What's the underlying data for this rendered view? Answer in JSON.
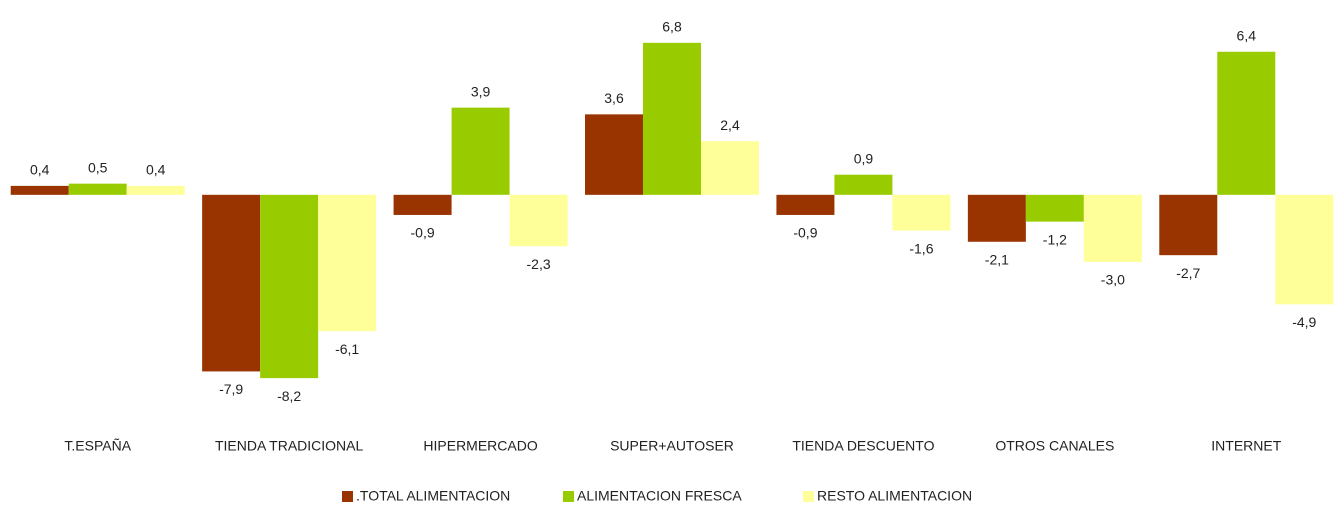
{
  "chart_data": {
    "type": "bar",
    "categories": [
      "T.ESPAÑA",
      "TIENDA TRADICIONAL",
      "HIPERMERCADO",
      "SUPER+AUTOSER",
      "TIENDA DESCUENTO",
      "OTROS CANALES",
      "INTERNET"
    ],
    "series": [
      {
        "name": ".TOTAL ALIMENTACION",
        "color": "#993300",
        "values": [
          0.4,
          -7.9,
          -0.9,
          3.6,
          -0.9,
          -2.1,
          -2.7
        ],
        "value_labels": [
          "0,4",
          "-7,9",
          "-0,9",
          "3,6",
          "-0,9",
          "-2,1",
          "-2,7"
        ]
      },
      {
        "name": "ALIMENTACION FRESCA",
        "color": "#99cc00",
        "values": [
          0.5,
          -8.2,
          3.9,
          6.8,
          0.9,
          -1.2,
          6.4
        ],
        "value_labels": [
          "0,5",
          "-8,2",
          "3,9",
          "6,8",
          "0,9",
          "-1,2",
          "6,4"
        ]
      },
      {
        "name": "RESTO ALIMENTACION",
        "color": "#ffff99",
        "values": [
          0.4,
          -6.1,
          -2.3,
          2.4,
          -1.6,
          -3.0,
          -4.9
        ],
        "value_labels": [
          "0,4",
          "-6,1",
          "-2,3",
          "2,4",
          "-1,6",
          "-3,0",
          "-4,9"
        ]
      }
    ],
    "ylim": [
      -9,
      8
    ],
    "legend": "bottom"
  }
}
